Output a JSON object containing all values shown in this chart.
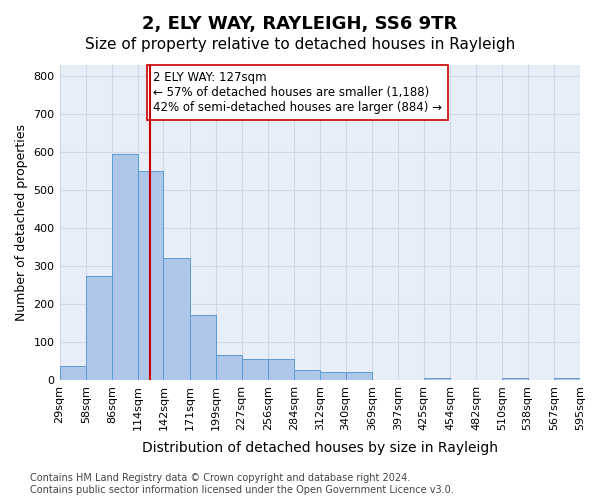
{
  "title": "2, ELY WAY, RAYLEIGH, SS6 9TR",
  "subtitle": "Size of property relative to detached houses in Rayleigh",
  "xlabel": "Distribution of detached houses by size in Rayleigh",
  "ylabel": "Number of detached properties",
  "bar_edges": [
    29,
    58,
    86,
    114,
    142,
    171,
    199,
    227,
    256,
    284,
    312,
    340,
    369,
    397,
    425,
    454,
    482,
    510,
    538,
    567,
    595
  ],
  "bar_heights": [
    37,
    275,
    595,
    550,
    320,
    170,
    65,
    55,
    55,
    25,
    20,
    20,
    0,
    0,
    5,
    0,
    0,
    5,
    0,
    5
  ],
  "bar_color": "#aec6e8",
  "bar_edge_color": "#5b9bd5",
  "vline_x": 127,
  "vline_color": "#cc0000",
  "annotation_text": "2 ELY WAY: 127sqm\n← 57% of detached houses are smaller (1,188)\n42% of semi-detached houses are larger (884) →",
  "annotation_box_color": "#ffffff",
  "annotation_box_edge_color": "#cc0000",
  "ylim": [
    0,
    830
  ],
  "yticks": [
    0,
    100,
    200,
    300,
    400,
    500,
    600,
    700,
    800
  ],
  "grid_color": "#d0d8e8",
  "background_color": "#e8eef8",
  "footer": "Contains HM Land Registry data © Crown copyright and database right 2024.\nContains public sector information licensed under the Open Government Licence v3.0.",
  "title_fontsize": 13,
  "subtitle_fontsize": 11,
  "xlabel_fontsize": 10,
  "ylabel_fontsize": 9,
  "tick_fontsize": 8,
  "annotation_fontsize": 8.5,
  "footer_fontsize": 7
}
